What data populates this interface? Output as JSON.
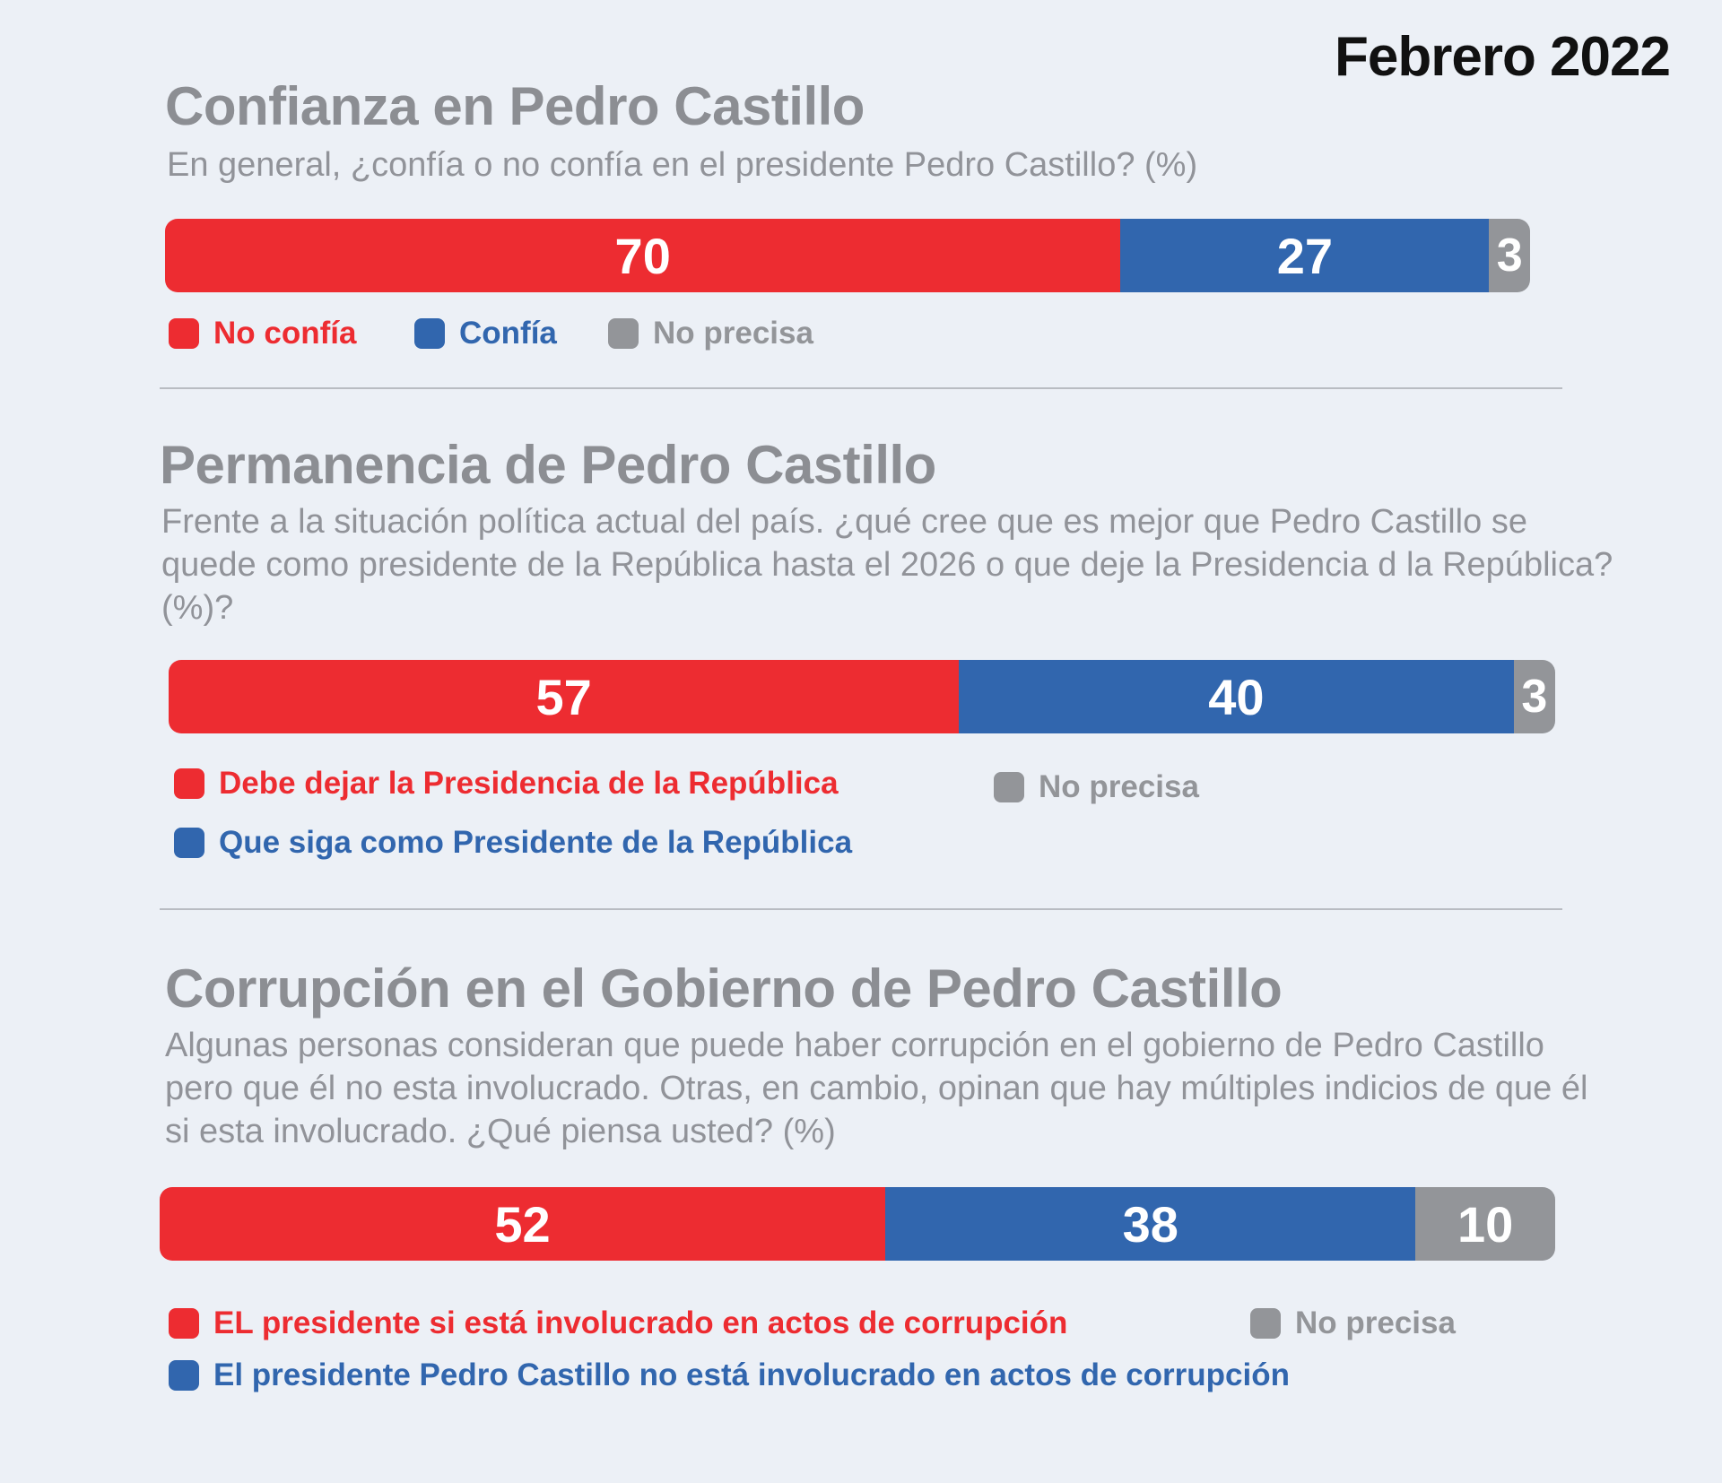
{
  "date_label": "Febrero 2022",
  "colors": {
    "red": "#ed2c31",
    "blue": "#3166ae",
    "gray": "#939599"
  },
  "chart_data": [
    {
      "type": "bar",
      "orientation": "horizontal-stacked",
      "title": "Confianza en Pedro Castillo",
      "subtitle": "En general, ¿confía o no confía en el presidente Pedro Castillo? (%)",
      "series": [
        {
          "name": "No confía",
          "value": 70,
          "label": "70",
          "color": "#ed2c31"
        },
        {
          "name": "Confía",
          "value": 27,
          "label": "27",
          "color": "#3166ae"
        },
        {
          "name": "No precisa",
          "value": 3,
          "label": "3",
          "color": "#939599"
        }
      ]
    },
    {
      "type": "bar",
      "orientation": "horizontal-stacked",
      "title": "Permanencia de Pedro Castillo",
      "subtitle": "Frente a la situación política actual del país. ¿qué cree que es mejor que Pedro Castillo se quede como presidente de la República hasta el 2026 o que deje la Presidencia d la República? (%)?",
      "series": [
        {
          "name": "Debe dejar la Presidencia de la República",
          "value": 57,
          "label": "57",
          "color": "#ed2c31"
        },
        {
          "name": "Que siga como Presidente de la República",
          "value": 40,
          "label": "40",
          "color": "#3166ae"
        },
        {
          "name": "No precisa",
          "value": 3,
          "label": "3",
          "color": "#939599"
        }
      ]
    },
    {
      "type": "bar",
      "orientation": "horizontal-stacked",
      "title": "Corrupción en el Gobierno de Pedro Castillo",
      "subtitle": "Algunas personas consideran que puede haber corrupción en el gobierno de Pedro Castillo pero que él no esta involucrado. Otras, en cambio, opinan que hay múltiples indicios de que él si esta involucrado. ¿Qué piensa usted? (%)",
      "series": [
        {
          "name": "EL presidente si está involucrado en actos de corrupción",
          "value": 52,
          "label": "52",
          "color": "#ed2c31"
        },
        {
          "name": "El presidente Pedro Castillo no está involucrado en actos de corrupción",
          "value": 38,
          "label": "38",
          "color": "#3166ae"
        },
        {
          "name": "No precisa",
          "value": 10,
          "label": "10",
          "color": "#939599"
        }
      ]
    }
  ]
}
